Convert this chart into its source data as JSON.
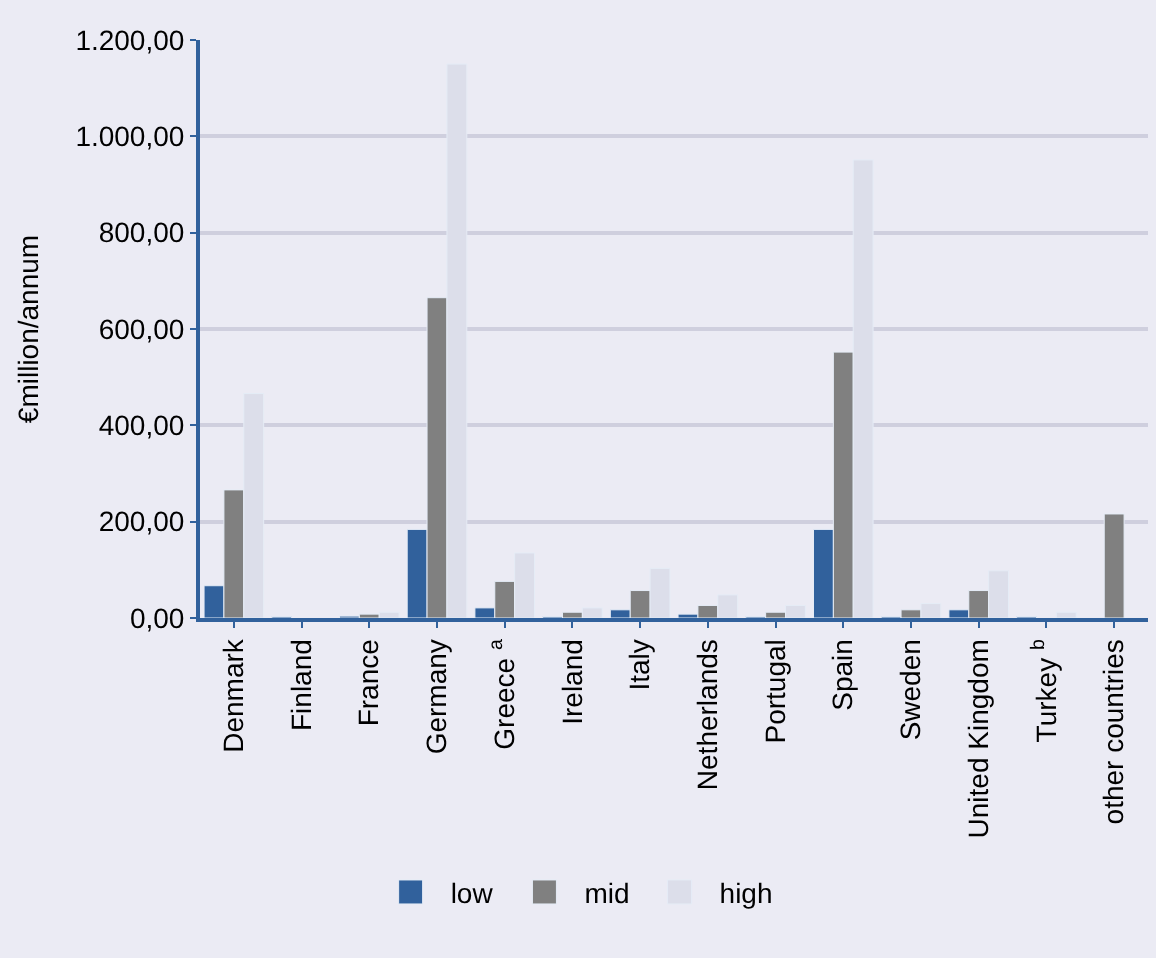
{
  "chart_data": {
    "type": "bar",
    "ylabel": "€million/annum",
    "categories": [
      "Denmark",
      "Finland",
      "France",
      "Germany",
      "Greece $^{a}$",
      "Ireland",
      "Italy",
      "Netherlands",
      "Portugal",
      "Spain",
      "Sweden",
      "United Kingdom",
      "Turkey $^{b}$",
      "other countries"
    ],
    "series": [
      {
        "name": "low",
        "color": "#31619c",
        "values": [
          67,
          3,
          4,
          184,
          21,
          3,
          17,
          8,
          3,
          184,
          3,
          17,
          3,
          null
        ]
      },
      {
        "name": "mid",
        "color": "#808080",
        "values": [
          266,
          null,
          8,
          665,
          76,
          12,
          57,
          26,
          12,
          552,
          17,
          57,
          null,
          216
        ]
      },
      {
        "name": "high",
        "color": "#dcdeea",
        "values": [
          466,
          null,
          12,
          1150,
          135,
          21,
          103,
          48,
          26,
          951,
          30,
          98,
          12,
          null
        ]
      }
    ],
    "ylim": [
      0,
      1200
    ],
    "yticks": [
      {
        "value": 0,
        "label": "0,00"
      },
      {
        "value": 200,
        "label": "200,00"
      },
      {
        "value": 400,
        "label": "400,00"
      },
      {
        "value": 600,
        "label": "600,00"
      },
      {
        "value": 800,
        "label": "800,00"
      },
      {
        "value": 1000,
        "label": "1.000,00"
      },
      {
        "value": 1200,
        "label": "1.200,00"
      }
    ],
    "grid": "y",
    "legend": "bottom"
  }
}
